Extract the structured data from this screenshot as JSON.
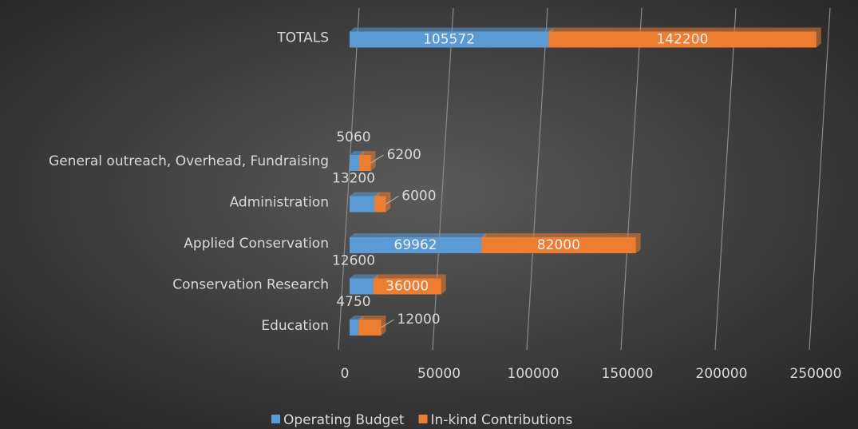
{
  "chart_data": {
    "type": "bar",
    "orientation": "horizontal",
    "stacked": true,
    "categories": [
      "Education",
      "Conservation Research",
      "Applied Conservation",
      "Administration",
      "General outreach, Overhead, Fundraising",
      null,
      null,
      "TOTALS"
    ],
    "series": [
      {
        "name": "Operating Budget",
        "color": "#5b9bd5",
        "values": [
          4750,
          12600,
          69962,
          13200,
          5060,
          null,
          null,
          105572
        ]
      },
      {
        "name": "In-kind Contributions",
        "color": "#ed7d31",
        "values": [
          12000,
          36000,
          82000,
          6000,
          6200,
          null,
          null,
          142200
        ]
      }
    ],
    "xlim": [
      0,
      250000
    ],
    "xticks": [
      0,
      50000,
      100000,
      150000,
      200000,
      250000
    ],
    "grid": true,
    "legend": "bottom"
  }
}
